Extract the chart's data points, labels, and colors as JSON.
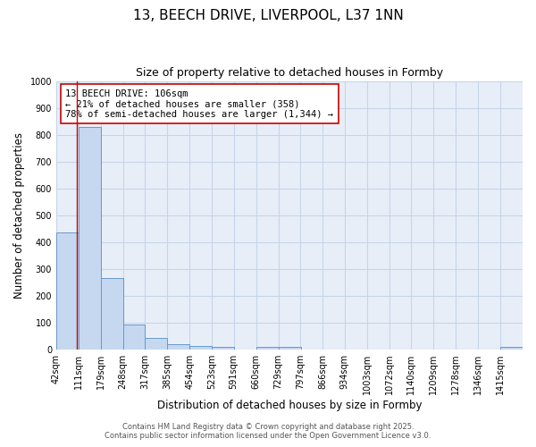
{
  "title": "13, BEECH DRIVE, LIVERPOOL, L37 1NN",
  "subtitle": "Size of property relative to detached houses in Formby",
  "xlabel": "Distribution of detached houses by size in Formby",
  "ylabel": "Number of detached properties",
  "bar_labels": [
    "42sqm",
    "111sqm",
    "179sqm",
    "248sqm",
    "317sqm",
    "385sqm",
    "454sqm",
    "523sqm",
    "591sqm",
    "660sqm",
    "729sqm",
    "797sqm",
    "866sqm",
    "934sqm",
    "1003sqm",
    "1072sqm",
    "1140sqm",
    "1209sqm",
    "1278sqm",
    "1346sqm",
    "1415sqm"
  ],
  "bin_edges": [
    42,
    111,
    179,
    248,
    317,
    385,
    454,
    523,
    591,
    660,
    729,
    797,
    866,
    934,
    1003,
    1072,
    1140,
    1209,
    1278,
    1346,
    1415
  ],
  "bar_heights": [
    435,
    830,
    265,
    95,
    45,
    20,
    15,
    10,
    0,
    10,
    10,
    0,
    0,
    0,
    0,
    0,
    0,
    0,
    0,
    0,
    10
  ],
  "bar_color": "#c5d8f0",
  "bar_edge_color": "#6699cc",
  "bar_edge_width": 0.7,
  "property_line_x": 106,
  "property_line_color": "#cc0000",
  "annotation_text": "13 BEECH DRIVE: 106sqm\n← 21% of detached houses are smaller (358)\n78% of semi-detached houses are larger (1,344) →",
  "annotation_box_color": "#ffffff",
  "annotation_box_edge_color": "#cc0000",
  "ylim": [
    0,
    1000
  ],
  "yticks": [
    0,
    100,
    200,
    300,
    400,
    500,
    600,
    700,
    800,
    900,
    1000
  ],
  "grid_color": "#c5d5e8",
  "background_color": "#e8eef8",
  "plot_bg_color": "#e8eef8",
  "footer_line1": "Contains HM Land Registry data © Crown copyright and database right 2025.",
  "footer_line2": "Contains public sector information licensed under the Open Government Licence v3.0.",
  "title_fontsize": 11,
  "subtitle_fontsize": 9,
  "axis_label_fontsize": 8.5,
  "tick_fontsize": 7,
  "annotation_fontsize": 7.5,
  "footer_fontsize": 6
}
